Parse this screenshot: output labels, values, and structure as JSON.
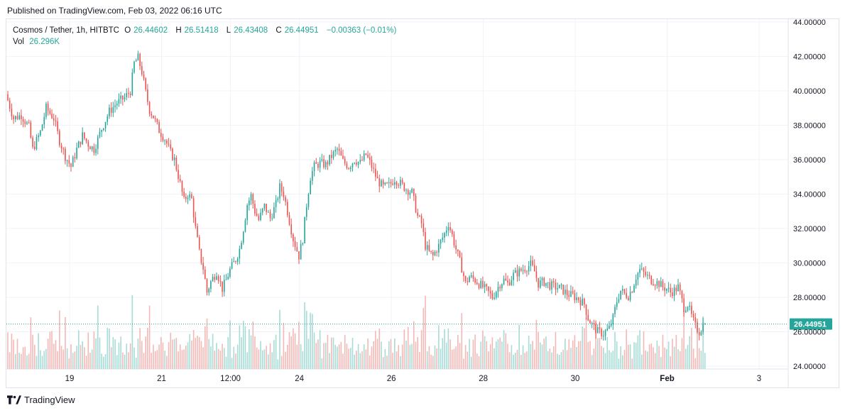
{
  "published": "Published on TradingView.com, Feb 03, 2022 06:16 UTC",
  "legend": {
    "symbol": "Cosmos / Tether, 1h, HITBTC",
    "o_label": "O",
    "o_value": "26.44602",
    "h_label": "H",
    "h_value": "26.51418",
    "l_label": "L",
    "l_value": "26.43408",
    "c_label": "C",
    "c_value": "26.44951",
    "change": "−0.00363 (−0.01%)",
    "vol_label": "Vol",
    "vol_value": "26.296K"
  },
  "last_price_label": "26.44951",
  "footer": {
    "brand": "TradingView"
  },
  "colors": {
    "up": "#26a69a",
    "down": "#ef5350",
    "up_vol": "#a8dcd6",
    "down_vol": "#f4b9b7",
    "grid": "#f0f3fa",
    "price_line": "#26a69a"
  },
  "chart_data": {
    "type": "candlestick",
    "title": "Cosmos / Tether, 1h, HITBTC",
    "y_ticks": [
      "44.00000",
      "42.00000",
      "40.00000",
      "38.00000",
      "36.00000",
      "34.00000",
      "32.00000",
      "30.00000",
      "28.00000",
      "26.00000",
      "24.00000"
    ],
    "ylim": [
      24,
      44
    ],
    "x_ticks": [
      {
        "label": "19",
        "hour": 33
      },
      {
        "label": "21",
        "hour": 81
      },
      {
        "label": "12:00",
        "hour": 117
      },
      {
        "label": "24",
        "hour": 153
      },
      {
        "label": "26",
        "hour": 201
      },
      {
        "label": "28",
        "hour": 249
      },
      {
        "label": "30",
        "hour": 297
      },
      {
        "label": "Feb",
        "hour": 345,
        "bold": true
      },
      {
        "label": "3",
        "hour": 393
      }
    ],
    "hours_total": 398,
    "price_path": [
      [
        0,
        39.8
      ],
      [
        4,
        38.4
      ],
      [
        8,
        38.6
      ],
      [
        12,
        37.9
      ],
      [
        14,
        36.6
      ],
      [
        18,
        37.6
      ],
      [
        21,
        39.0
      ],
      [
        25,
        38.4
      ],
      [
        28,
        37.1
      ],
      [
        31,
        36.2
      ],
      [
        34,
        35.6
      ],
      [
        37,
        36.6
      ],
      [
        40,
        37.4
      ],
      [
        43,
        36.9
      ],
      [
        46,
        36.6
      ],
      [
        50,
        37.8
      ],
      [
        54,
        38.8
      ],
      [
        58,
        39.3
      ],
      [
        62,
        39.6
      ],
      [
        65,
        40.0
      ],
      [
        67,
        41.6
      ],
      [
        69,
        41.9
      ],
      [
        71,
        41.1
      ],
      [
        73,
        39.9
      ],
      [
        75,
        38.9
      ],
      [
        77,
        38.5
      ],
      [
        80,
        37.7
      ],
      [
        83,
        37.2
      ],
      [
        86,
        36.4
      ],
      [
        88,
        36.0
      ],
      [
        91,
        34.6
      ],
      [
        93,
        33.6
      ],
      [
        95,
        34.0
      ],
      [
        97,
        33.7
      ],
      [
        99,
        32.0
      ],
      [
        101,
        30.6
      ],
      [
        103,
        29.7
      ],
      [
        105,
        28.3
      ],
      [
        107,
        28.9
      ],
      [
        110,
        29.5
      ],
      [
        113,
        28.5
      ],
      [
        115,
        29.0
      ],
      [
        117,
        29.6
      ],
      [
        120,
        30.2
      ],
      [
        122,
        30.8
      ],
      [
        124,
        32.0
      ],
      [
        126,
        33.4
      ],
      [
        128,
        33.9
      ],
      [
        130,
        33.0
      ],
      [
        132,
        32.5
      ],
      [
        135,
        33.3
      ],
      [
        138,
        32.6
      ],
      [
        141,
        33.4
      ],
      [
        143,
        34.4
      ],
      [
        145,
        34.0
      ],
      [
        147,
        33.0
      ],
      [
        150,
        31.4
      ],
      [
        153,
        30.4
      ],
      [
        155,
        31.4
      ],
      [
        157,
        33.4
      ],
      [
        159,
        35.0
      ],
      [
        161,
        35.6
      ],
      [
        164,
        35.8
      ],
      [
        167,
        35.7
      ],
      [
        170,
        36.2
      ],
      [
        173,
        36.6
      ],
      [
        176,
        35.9
      ],
      [
        179,
        35.6
      ],
      [
        182,
        36.0
      ],
      [
        185,
        35.8
      ],
      [
        188,
        36.3
      ],
      [
        191,
        35.6
      ],
      [
        194,
        34.8
      ],
      [
        197,
        34.4
      ],
      [
        200,
        34.5
      ],
      [
        203,
        34.9
      ],
      [
        206,
        34.6
      ],
      [
        209,
        34.3
      ],
      [
        212,
        34.1
      ],
      [
        215,
        32.7
      ],
      [
        217,
        32.3
      ],
      [
        219,
        31.0
      ],
      [
        221,
        30.6
      ],
      [
        223,
        30.4
      ],
      [
        226,
        31.0
      ],
      [
        229,
        31.7
      ],
      [
        231,
        32.3
      ],
      [
        233,
        31.6
      ],
      [
        235,
        30.8
      ],
      [
        238,
        29.7
      ],
      [
        240,
        28.8
      ],
      [
        242,
        29.2
      ],
      [
        245,
        29.0
      ],
      [
        248,
        28.7
      ],
      [
        251,
        28.4
      ],
      [
        254,
        28.0
      ],
      [
        256,
        28.4
      ],
      [
        258,
        28.8
      ],
      [
        260,
        29.0
      ],
      [
        262,
        28.8
      ],
      [
        265,
        29.3
      ],
      [
        268,
        29.5
      ],
      [
        271,
        29.7
      ],
      [
        274,
        29.9
      ],
      [
        276,
        29.5
      ],
      [
        278,
        28.8
      ],
      [
        281,
        28.9
      ],
      [
        284,
        28.7
      ],
      [
        287,
        28.6
      ],
      [
        290,
        28.5
      ],
      [
        293,
        28.2
      ],
      [
        296,
        28.1
      ],
      [
        299,
        27.9
      ],
      [
        302,
        27.6
      ],
      [
        304,
        26.8
      ],
      [
        306,
        26.4
      ],
      [
        309,
        26.0
      ],
      [
        312,
        25.9
      ],
      [
        315,
        26.2
      ],
      [
        317,
        26.8
      ],
      [
        319,
        27.8
      ],
      [
        321,
        28.4
      ],
      [
        323,
        28.2
      ],
      [
        325,
        28.1
      ],
      [
        327,
        28.5
      ],
      [
        329,
        29.2
      ],
      [
        331,
        29.6
      ],
      [
        333,
        29.4
      ],
      [
        335,
        29.2
      ],
      [
        337,
        29.0
      ],
      [
        339,
        28.9
      ],
      [
        341,
        28.8
      ],
      [
        343,
        28.6
      ],
      [
        345,
        28.5
      ],
      [
        347,
        28.3
      ],
      [
        349,
        28.4
      ],
      [
        351,
        28.6
      ],
      [
        352,
        28.2
      ],
      [
        354,
        27.4
      ],
      [
        356,
        27.6
      ],
      [
        358,
        26.9
      ],
      [
        360,
        26.3
      ],
      [
        362,
        26.0
      ],
      [
        363,
        26.2
      ],
      [
        364,
        26.45
      ]
    ],
    "last_price": 26.44951,
    "volume_max_k": 60
  }
}
